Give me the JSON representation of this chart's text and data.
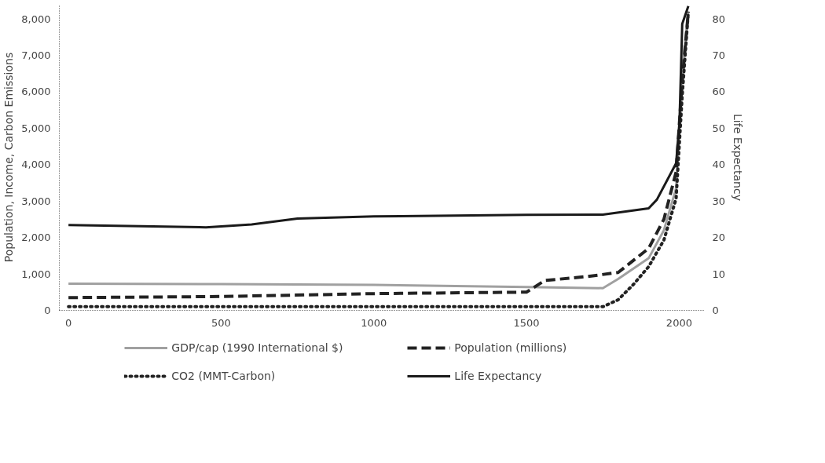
{
  "chart_data": {
    "type": "line",
    "ylabel": "Population, Income, Carbon Emissions",
    "y2label": "Life Expectancy",
    "xlim": [
      -30,
      2080
    ],
    "xticks": [
      0,
      500,
      1000,
      1500,
      2000
    ],
    "ylim": [
      0,
      8400
    ],
    "yticks": [
      0,
      {
        "value": 1000,
        "label": "1,000"
      },
      {
        "value": 2000,
        "label": "2,000"
      },
      {
        "value": 3000,
        "label": "3,000"
      },
      {
        "value": 4000,
        "label": "4,000"
      },
      {
        "value": 5000,
        "label": "5,000"
      },
      {
        "value": 6000,
        "label": "6,000"
      },
      {
        "value": 7000,
        "label": "7,000"
      },
      {
        "value": 8000,
        "label": "8,000"
      }
    ],
    "y2lim": [
      0,
      84
    ],
    "y2ticks": [
      0,
      10,
      20,
      30,
      40,
      50,
      60,
      70,
      80
    ],
    "grid": false,
    "legend": "bottom",
    "marker": "none",
    "series": [
      {
        "name": "GDP/cap (1990 International $)",
        "color": "#a0a0a0",
        "line_style": "solid",
        "x": [
          0,
          500,
          1000,
          1500,
          1750,
          1800,
          1900,
          1950,
          1990,
          2010,
          2030
        ],
        "values": [
          730,
          720,
          700,
          640,
          610,
          860,
          1430,
          2200,
          3350,
          6600,
          8200
        ]
      },
      {
        "name": "Population (millions)",
        "color": "#222222",
        "line_style": "dashed",
        "x": [
          0,
          500,
          1000,
          1500,
          1560,
          1700,
          1800,
          1900,
          1950,
          1990,
          2010,
          2030
        ],
        "values": [
          350,
          380,
          460,
          500,
          820,
          930,
          1040,
          1700,
          2500,
          3800,
          6300,
          8200
        ]
      },
      {
        "name": "CO2 (MMT-Carbon)",
        "color": "#222222",
        "line_style": "dotted",
        "x": [
          0,
          500,
          1000,
          1500,
          1750,
          1800,
          1850,
          1900,
          1950,
          1990,
          2010,
          2030
        ],
        "values": [
          100,
          100,
          100,
          100,
          100,
          290,
          710,
          1200,
          1930,
          3070,
          5900,
          8200
        ]
      },
      {
        "name": "Life Expectancy",
        "color": "#1a1a1a",
        "line_style": "solid",
        "axis": "y2",
        "x": [
          0,
          450,
          600,
          750,
          1000,
          1500,
          1750,
          1900,
          1927,
          1990,
          2001,
          2010,
          2030
        ],
        "values": [
          23.4,
          22.8,
          23.6,
          25.2,
          25.8,
          26.2,
          26.3,
          28,
          30.4,
          40.4,
          51.7,
          78.6,
          83.5
        ]
      }
    ]
  }
}
